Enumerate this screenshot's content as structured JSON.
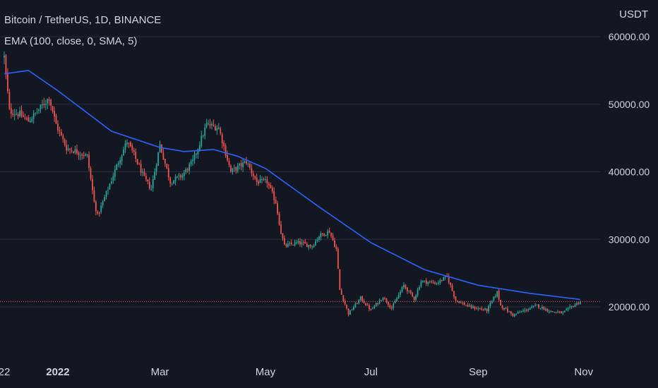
{
  "header": {
    "symbol_title": "Bitcoin / TetherUS, 1D, BINANCE",
    "indicator": "EMA (100, close, 0, SMA, 5)"
  },
  "colors": {
    "background": "#131722",
    "grid": "#2a2e39",
    "up": "#26a69a",
    "down": "#ef5350",
    "ema": "#2962ff",
    "price_line": "#ef5350",
    "text": "#d1d4dc"
  },
  "chart_data": {
    "type": "candlestick",
    "y_unit": "USDT",
    "ylim": [
      16000,
      61000
    ],
    "y_ticks": [
      {
        "value": 20000,
        "label": "20000.00"
      },
      {
        "value": 30000,
        "label": "30000.00"
      },
      {
        "value": 40000,
        "label": "40000.00"
      },
      {
        "value": 50000,
        "label": "50000.00"
      },
      {
        "value": 60000,
        "label": "60000.00"
      }
    ],
    "x_ticks": [
      {
        "label": "22",
        "date": "2021-12-01",
        "bold": false
      },
      {
        "label": "2022",
        "date": "2022-01-01",
        "bold": true
      },
      {
        "label": "Mar",
        "date": "2022-03-01",
        "bold": false
      },
      {
        "label": "May",
        "date": "2022-05-01",
        "bold": false
      },
      {
        "label": "Jul",
        "date": "2022-07-01",
        "bold": false
      },
      {
        "label": "Sep",
        "date": "2022-09-01",
        "bold": false
      },
      {
        "label": "Nov",
        "date": "2022-11-01",
        "bold": false
      }
    ],
    "last_price": 20800,
    "grid": true,
    "price_anchors": [
      [
        "2021-12-01",
        57000
      ],
      [
        "2021-12-04",
        49000
      ],
      [
        "2021-12-10",
        48500
      ],
      [
        "2021-12-15",
        47500
      ],
      [
        "2021-12-22",
        49500
      ],
      [
        "2021-12-27",
        51000
      ],
      [
        "2021-12-31",
        47000
      ],
      [
        "2022-01-06",
        43500
      ],
      [
        "2022-01-12",
        43000
      ],
      [
        "2022-01-18",
        42300
      ],
      [
        "2022-01-22",
        35500
      ],
      [
        "2022-01-24",
        33500
      ],
      [
        "2022-01-30",
        37500
      ],
      [
        "2022-02-05",
        41500
      ],
      [
        "2022-02-10",
        44500
      ],
      [
        "2022-02-14",
        42500
      ],
      [
        "2022-02-20",
        39000
      ],
      [
        "2022-02-24",
        37500
      ],
      [
        "2022-03-01",
        44000
      ],
      [
        "2022-03-07",
        38500
      ],
      [
        "2022-03-14",
        39500
      ],
      [
        "2022-03-20",
        41500
      ],
      [
        "2022-03-28",
        47000
      ],
      [
        "2022-04-04",
        46500
      ],
      [
        "2022-04-11",
        40000
      ],
      [
        "2022-04-20",
        41500
      ],
      [
        "2022-04-26",
        38500
      ],
      [
        "2022-05-02",
        38500
      ],
      [
        "2022-05-07",
        35500
      ],
      [
        "2022-05-10",
        31000
      ],
      [
        "2022-05-12",
        29000
      ],
      [
        "2022-05-20",
        29500
      ],
      [
        "2022-05-28",
        29000
      ],
      [
        "2022-06-01",
        30500
      ],
      [
        "2022-06-07",
        31200
      ],
      [
        "2022-06-11",
        28500
      ],
      [
        "2022-06-13",
        22500
      ],
      [
        "2022-06-18",
        19000
      ],
      [
        "2022-06-25",
        21300
      ],
      [
        "2022-07-01",
        19500
      ],
      [
        "2022-07-08",
        21500
      ],
      [
        "2022-07-13",
        19800
      ],
      [
        "2022-07-20",
        23200
      ],
      [
        "2022-07-26",
        21200
      ],
      [
        "2022-07-30",
        23800
      ],
      [
        "2022-08-08",
        23500
      ],
      [
        "2022-08-14",
        24500
      ],
      [
        "2022-08-19",
        21000
      ],
      [
        "2022-08-27",
        20000
      ],
      [
        "2022-09-06",
        19500
      ],
      [
        "2022-09-12",
        22200
      ],
      [
        "2022-09-14",
        20200
      ],
      [
        "2022-09-21",
        18800
      ],
      [
        "2022-09-28",
        19500
      ],
      [
        "2022-10-05",
        20200
      ],
      [
        "2022-10-13",
        19300
      ],
      [
        "2022-10-20",
        19100
      ],
      [
        "2022-10-26",
        20200
      ],
      [
        "2022-10-30",
        20800
      ]
    ],
    "ema_anchors": [
      [
        "2021-12-01",
        54500
      ],
      [
        "2021-12-15",
        55000
      ],
      [
        "2022-01-01",
        52000
      ],
      [
        "2022-02-01",
        46000
      ],
      [
        "2022-03-01",
        43600
      ],
      [
        "2022-03-15",
        43000
      ],
      [
        "2022-04-01",
        43300
      ],
      [
        "2022-04-15",
        42300
      ],
      [
        "2022-05-01",
        40500
      ],
      [
        "2022-06-01",
        34800
      ],
      [
        "2022-07-01",
        29500
      ],
      [
        "2022-08-01",
        25500
      ],
      [
        "2022-09-01",
        23200
      ],
      [
        "2022-10-01",
        22000
      ],
      [
        "2022-10-30",
        21100
      ]
    ]
  }
}
